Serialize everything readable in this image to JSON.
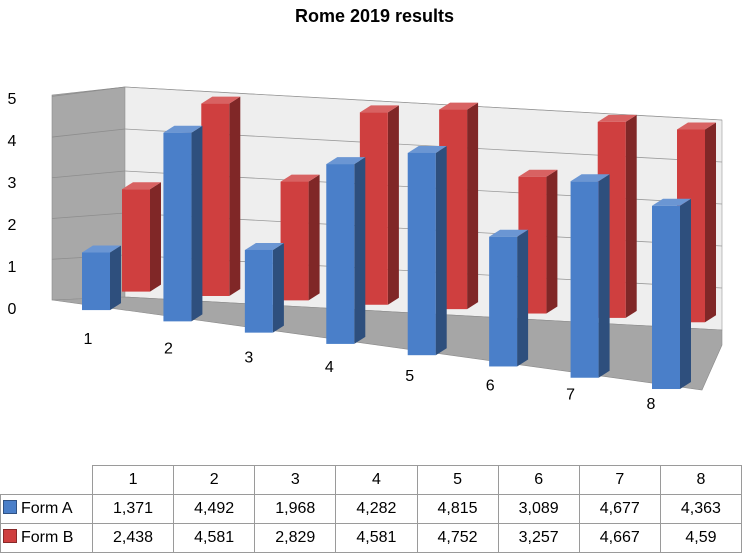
{
  "chart_data": {
    "type": "bar",
    "title": "Rome 2019 results",
    "categories": [
      "1",
      "2",
      "3",
      "4",
      "5",
      "6",
      "7",
      "8"
    ],
    "series": [
      {
        "name": "Form A",
        "color": "#4a7fc9",
        "values": [
          1.371,
          4.492,
          1.968,
          4.282,
          4.815,
          3.089,
          4.677,
          4.363
        ],
        "labels": [
          "1,371",
          "4,492",
          "1,968",
          "4,282",
          "4,815",
          "3,089",
          "4,677",
          "4,363"
        ]
      },
      {
        "name": "Form B",
        "color": "#cf3f3f",
        "values": [
          2.438,
          4.581,
          2.829,
          4.581,
          4.752,
          3.257,
          4.667,
          4.59
        ],
        "labels": [
          "2,438",
          "4,581",
          "2,829",
          "4,581",
          "4,752",
          "3,257",
          "4,667",
          "4,59"
        ]
      }
    ],
    "ylim": [
      0,
      5
    ],
    "yticks": [
      "0",
      "1",
      "2",
      "3",
      "4",
      "5"
    ],
    "grid": true,
    "style": "3d-clustered-column",
    "legend": "data-table"
  }
}
